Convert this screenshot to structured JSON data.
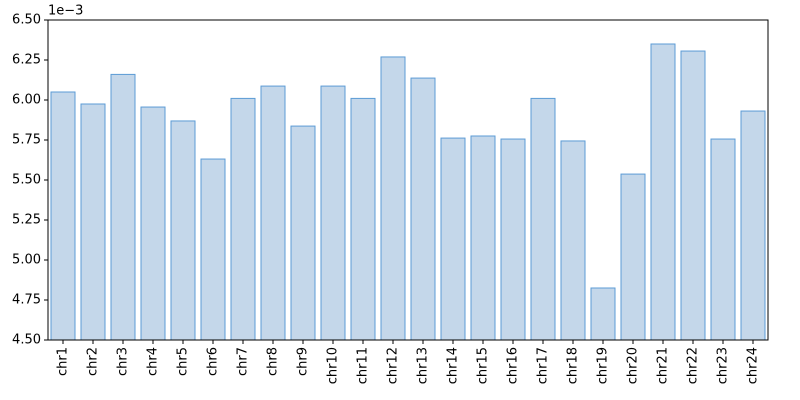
{
  "chart_data": {
    "type": "bar",
    "offset_label": "1e−3",
    "categories": [
      "chr1",
      "chr2",
      "chr3",
      "chr4",
      "chr5",
      "chr6",
      "chr7",
      "chr8",
      "chr9",
      "chr10",
      "chr11",
      "chr12",
      "chr13",
      "chr14",
      "chr15",
      "chr16",
      "chr17",
      "chr18",
      "chr19",
      "chr20",
      "chr21",
      "chr22",
      "chr23",
      "chr24"
    ],
    "values": [
      6.05,
      5.975,
      6.16,
      5.956,
      5.869,
      5.631,
      6.01,
      6.087,
      5.837,
      6.087,
      6.01,
      6.269,
      6.137,
      5.762,
      5.775,
      5.756,
      6.01,
      5.744,
      4.825,
      5.537,
      6.35,
      6.306,
      5.756,
      5.931
    ],
    "color": "#c4d7ea",
    "edge_color": "#5b9bd5",
    "ylim": [
      4.5,
      6.5
    ],
    "yticks": [
      {
        "value": 4.5,
        "label": "4.50"
      },
      {
        "value": 4.75,
        "label": "4.75"
      },
      {
        "value": 5,
        "label": "5.00"
      },
      {
        "value": 5.25,
        "label": "5.25"
      },
      {
        "value": 5.5,
        "label": "5.50"
      },
      {
        "value": 5.75,
        "label": "5.75"
      },
      {
        "value": 6,
        "label": "6.00"
      },
      {
        "value": 6.25,
        "label": "6.25"
      },
      {
        "value": 6.5,
        "label": "6.50"
      }
    ],
    "grid": false
  }
}
